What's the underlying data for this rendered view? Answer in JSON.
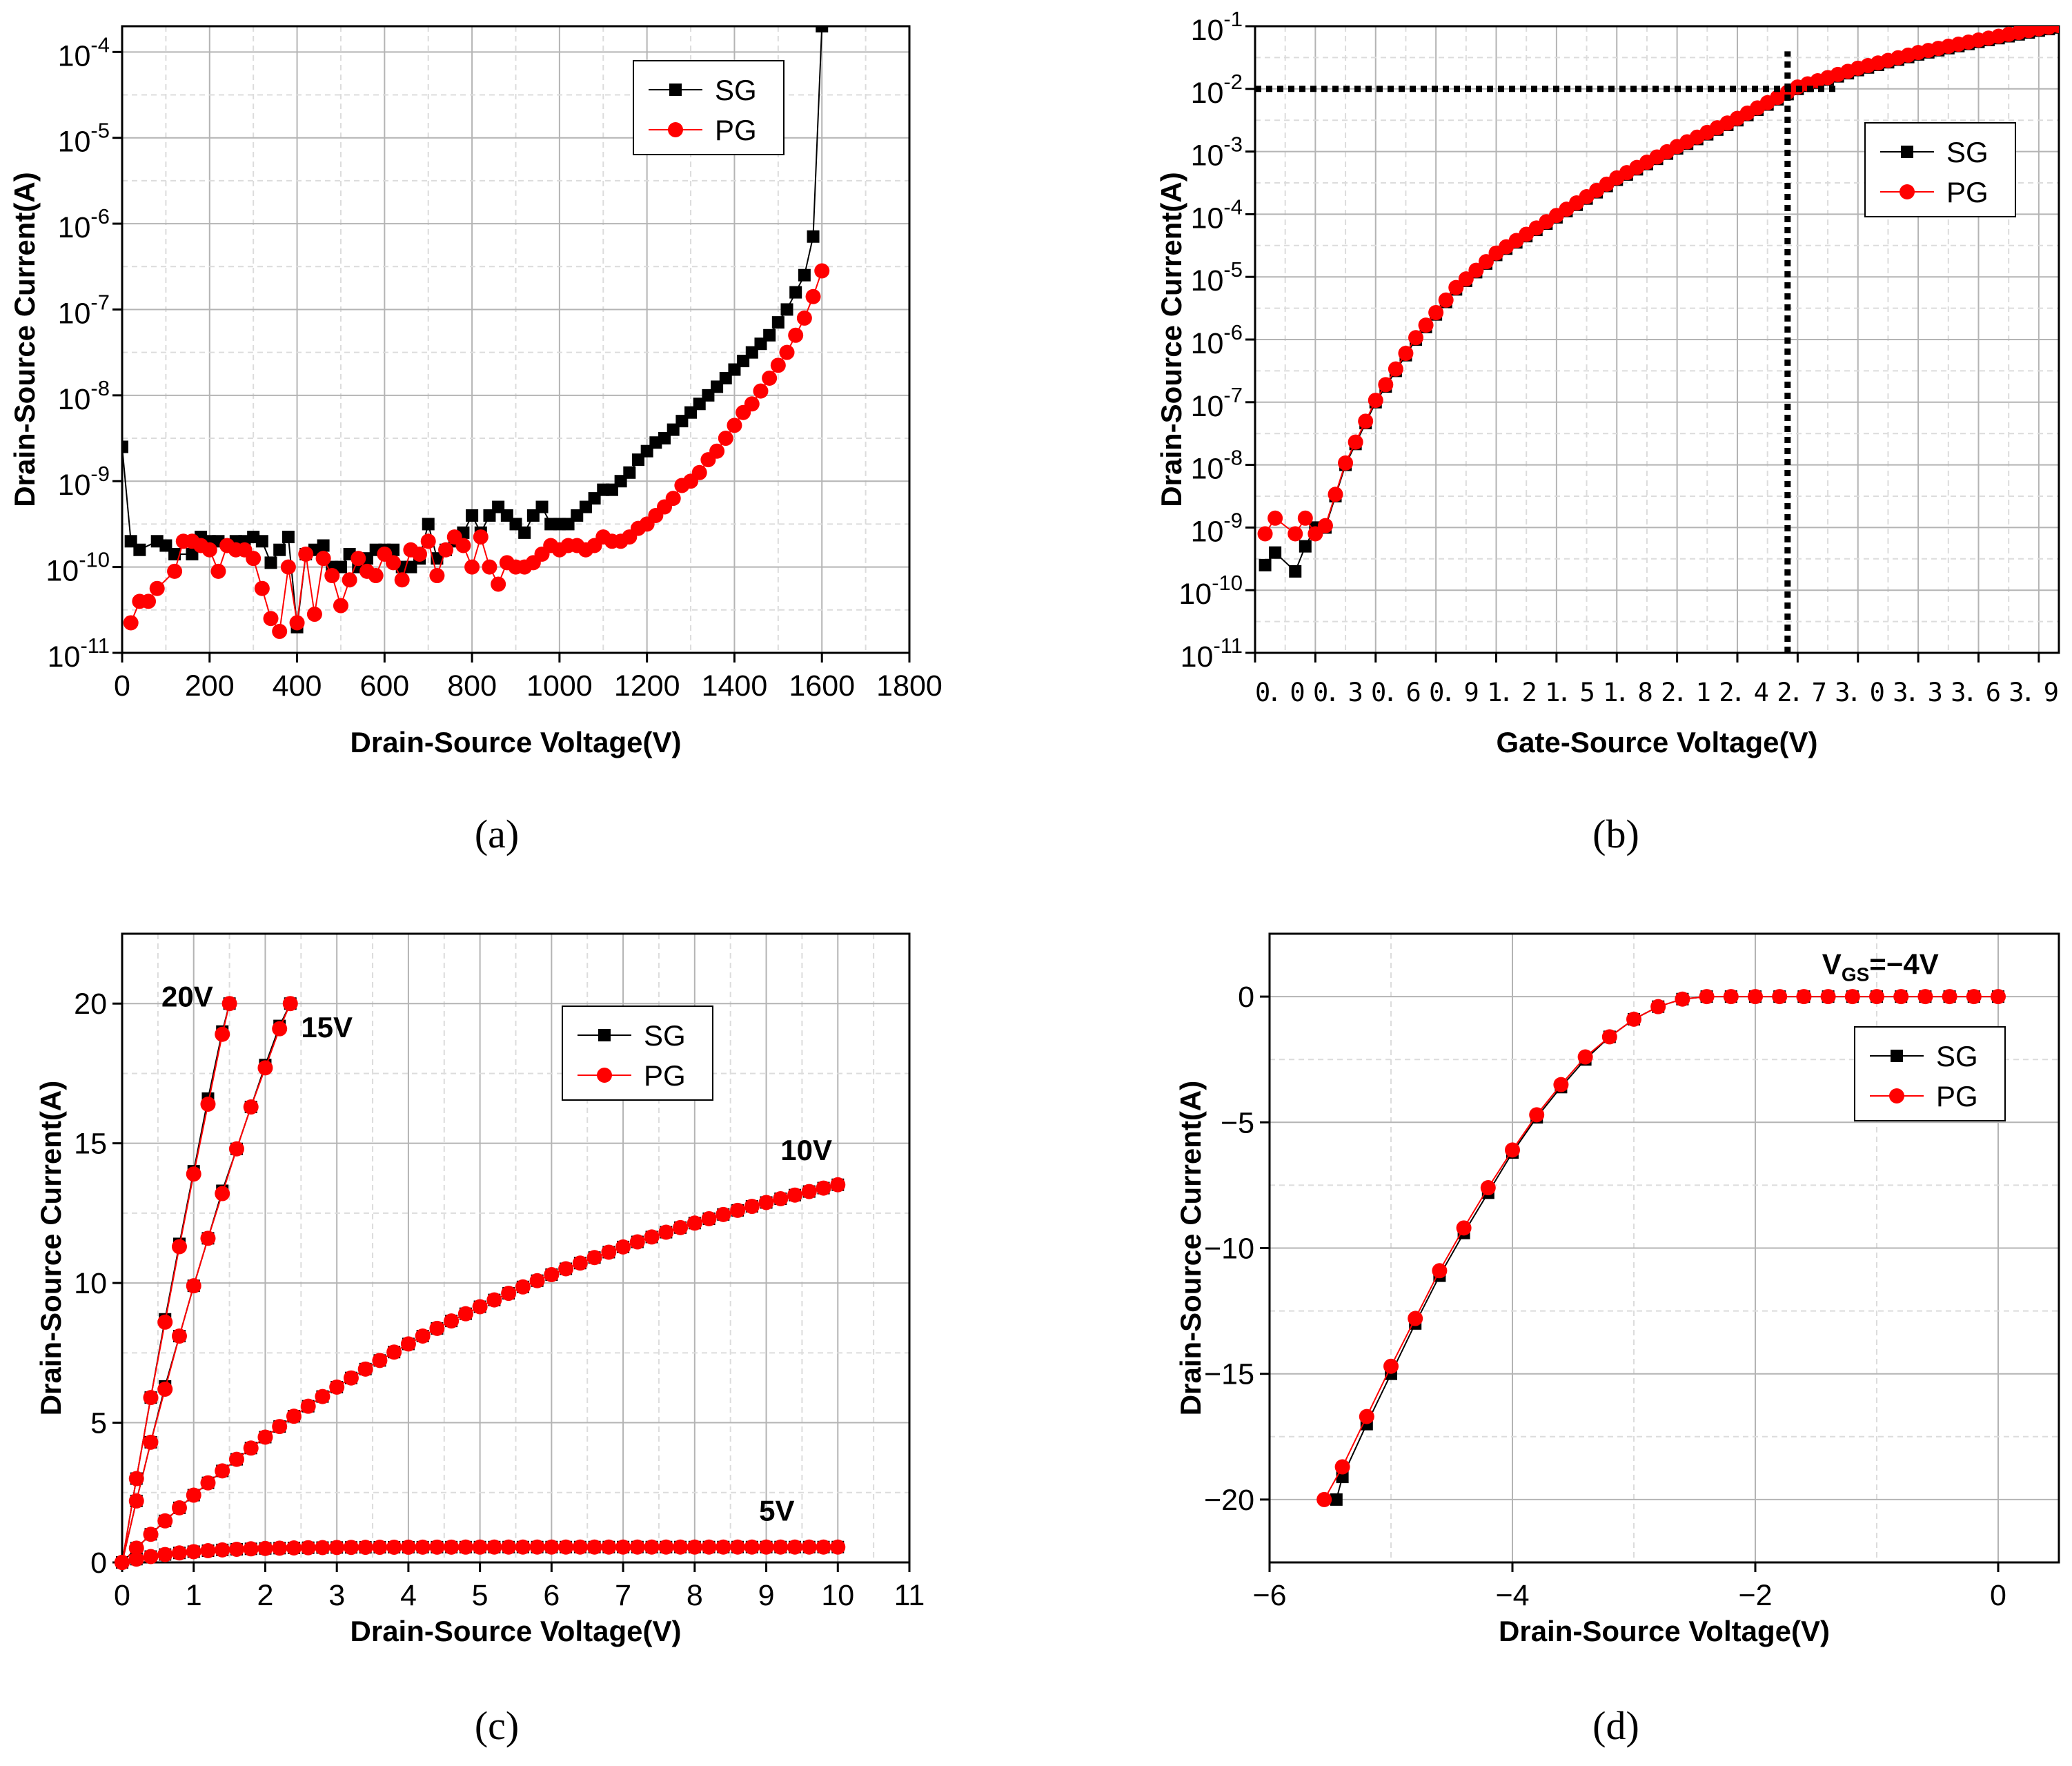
{
  "colors": {
    "sg": "#000000",
    "pg": "#ff0000",
    "frame": "#000000",
    "grid_major": "#b4b4b4",
    "grid_minor": "#dcdcdc"
  },
  "chart_data": [
    {
      "id": "a",
      "type": "scatter",
      "caption": "(a)",
      "xlabel": "Drain-Source Voltage(V)",
      "ylabel": "Drain-Source Current(A)",
      "xscale": "linear",
      "yscale": "log",
      "xlim": [
        0,
        1800
      ],
      "ylim_exp": [
        -11,
        -3.7
      ],
      "xticks": [
        0,
        200,
        400,
        600,
        800,
        1000,
        1200,
        1400,
        1600,
        1800
      ],
      "xtick_labels": [
        "0",
        "200",
        "400",
        "600",
        "800",
        "1000",
        "1200",
        "1400",
        "1600",
        "1800"
      ],
      "yticks": [
        -11,
        -10,
        -9,
        -8,
        -7,
        -6,
        -5,
        -4
      ],
      "ytick_labels": [
        {
          "base": "10",
          "exp": "-11"
        },
        {
          "base": "10",
          "exp": "-10"
        },
        {
          "base": "10",
          "exp": "-9"
        },
        {
          "base": "10",
          "exp": "-8"
        },
        {
          "base": "10",
          "exp": "-7"
        },
        {
          "base": "10",
          "exp": "-6"
        },
        {
          "base": "10",
          "exp": "-5"
        },
        {
          "base": "10",
          "exp": "-4"
        }
      ],
      "grid": true,
      "legend": {
        "position": "top-right",
        "entries": [
          "SG",
          "PG"
        ]
      },
      "annotations": [],
      "series": [
        {
          "name": "SG",
          "x": [
            0,
            20,
            40,
            80,
            100,
            120,
            160,
            180,
            200,
            220,
            260,
            280,
            300,
            320,
            340,
            360,
            380,
            400,
            420,
            440,
            460,
            480,
            500,
            520,
            540,
            560,
            580,
            600,
            620,
            640,
            660,
            680,
            700,
            720,
            740,
            760,
            780,
            800,
            820,
            840,
            860,
            880,
            900,
            920,
            940,
            960,
            980,
            1000,
            1020,
            1040,
            1060,
            1080,
            1100,
            1120,
            1140,
            1160,
            1180,
            1200,
            1220,
            1240,
            1260,
            1280,
            1300,
            1320,
            1340,
            1360,
            1380,
            1400,
            1420,
            1440,
            1460,
            1480,
            1500,
            1520,
            1540,
            1560,
            1580,
            1600
          ],
          "y_exp": [
            -8.6,
            -9.7,
            -9.8,
            -9.7,
            -9.75,
            -9.85,
            -9.85,
            -9.65,
            -9.7,
            -9.7,
            -9.7,
            -9.7,
            -9.65,
            -9.7,
            -9.95,
            -9.8,
            -9.65,
            -10.7,
            -9.85,
            -9.8,
            -9.75,
            -10.0,
            -10.0,
            -9.85,
            -10.0,
            -9.9,
            -9.8,
            -9.8,
            -9.8,
            -10.0,
            -10.0,
            -9.9,
            -9.5,
            -9.9,
            -9.8,
            -9.7,
            -9.6,
            -9.4,
            -9.6,
            -9.4,
            -9.3,
            -9.4,
            -9.5,
            -9.6,
            -9.4,
            -9.3,
            -9.5,
            -9.5,
            -9.5,
            -9.4,
            -9.3,
            -9.2,
            -9.1,
            -9.1,
            -9.0,
            -8.9,
            -8.75,
            -8.65,
            -8.55,
            -8.5,
            -8.4,
            -8.3,
            -8.2,
            -8.1,
            -8.0,
            -7.9,
            -7.8,
            -7.7,
            -7.6,
            -7.5,
            -7.4,
            -7.3,
            -7.15,
            -7.0,
            -6.8,
            -6.6,
            -6.15,
            -3.7
          ]
        },
        {
          "name": "PG",
          "x": [
            20,
            40,
            60,
            80,
            120,
            140,
            160,
            180,
            200,
            220,
            240,
            260,
            280,
            300,
            320,
            340,
            360,
            380,
            400,
            420,
            440,
            460,
            480,
            500,
            520,
            540,
            560,
            580,
            600,
            620,
            640,
            660,
            680,
            700,
            720,
            740,
            760,
            780,
            800,
            820,
            840,
            860,
            880,
            900,
            920,
            940,
            960,
            980,
            1000,
            1020,
            1040,
            1060,
            1080,
            1100,
            1120,
            1140,
            1160,
            1180,
            1200,
            1220,
            1240,
            1260,
            1280,
            1300,
            1320,
            1340,
            1360,
            1380,
            1400,
            1420,
            1440,
            1460,
            1480,
            1500,
            1520,
            1540,
            1560,
            1580,
            1600
          ],
          "y_exp": [
            -10.65,
            -10.4,
            -10.4,
            -10.25,
            -10.05,
            -9.7,
            -9.7,
            -9.75,
            -9.8,
            -10.05,
            -9.75,
            -9.8,
            -9.8,
            -9.9,
            -10.25,
            -10.6,
            -10.75,
            -10.0,
            -10.65,
            -9.85,
            -10.55,
            -9.9,
            -10.1,
            -10.45,
            -10.15,
            -9.9,
            -10.05,
            -10.1,
            -9.85,
            -9.95,
            -10.15,
            -9.8,
            -9.85,
            -9.7,
            -10.1,
            -9.8,
            -9.65,
            -9.75,
            -10.0,
            -9.65,
            -10.0,
            -10.2,
            -9.95,
            -10.0,
            -10.0,
            -9.95,
            -9.85,
            -9.75,
            -9.8,
            -9.75,
            -9.75,
            -9.8,
            -9.75,
            -9.65,
            -9.7,
            -9.7,
            -9.65,
            -9.55,
            -9.5,
            -9.4,
            -9.3,
            -9.2,
            -9.05,
            -9.0,
            -8.9,
            -8.75,
            -8.65,
            -8.5,
            -8.35,
            -8.2,
            -8.1,
            -7.95,
            -7.8,
            -7.65,
            -7.5,
            -7.3,
            -7.1,
            -6.85,
            -6.55
          ]
        }
      ]
    },
    {
      "id": "b",
      "type": "scatter",
      "caption": "(b)",
      "xlabel": "Gate-Source Voltage(V)",
      "ylabel": "Drain-Source Current(A)",
      "xscale": "linear",
      "yscale": "log",
      "xlim": [
        0,
        4.0
      ],
      "ylim_exp": [
        -11,
        -1
      ],
      "xticks": [
        0,
        0.3,
        0.6,
        0.9,
        1.2,
        1.5,
        1.8,
        2.1,
        2.4,
        2.7,
        3.0,
        3.3,
        3.6,
        3.9
      ],
      "xtick_labels": [
        "0.0",
        "0.3",
        "0.6",
        "0.9",
        "1.2",
        "1.5",
        "1.8",
        "2.1",
        "2.4",
        "2.7",
        "3.0",
        "3.3",
        "3.6",
        "3.9"
      ],
      "xtick_labels_inline": "0. 0 0. 3 0. 6 0. 9 1. 2 1. 5 1. 8 2. 1 2. 4 2. 7 3. 0 3. 3 3. 6 3. 9",
      "yticks": [
        -11,
        -10,
        -9,
        -8,
        -7,
        -6,
        -5,
        -4,
        -3,
        -2,
        -1
      ],
      "ytick_labels": [
        {
          "base": "10",
          "exp": "-11"
        },
        {
          "base": "10",
          "exp": "-10"
        },
        {
          "base": "10",
          "exp": "-9"
        },
        {
          "base": "10",
          "exp": "-8"
        },
        {
          "base": "10",
          "exp": "-7"
        },
        {
          "base": "10",
          "exp": "-6"
        },
        {
          "base": "10",
          "exp": "-5"
        },
        {
          "base": "10",
          "exp": "-4"
        },
        {
          "base": "10",
          "exp": "-3"
        },
        {
          "base": "10",
          "exp": "-2"
        },
        {
          "base": "10",
          "exp": "-1"
        }
      ],
      "grid": true,
      "legend": {
        "position": "upper-right",
        "entries": [
          "SG",
          "PG"
        ]
      },
      "annotations": [],
      "reference_lines": [
        {
          "type": "horizontal",
          "y_exp": -2,
          "x_from": 0,
          "x_to": 2.9
        },
        {
          "type": "vertical",
          "x": 2.65,
          "y_from_exp": -11,
          "y_to_exp": -1.4
        }
      ],
      "sg_low": {
        "x": [
          0.05,
          0.1,
          0.2,
          0.25,
          0.3,
          0.35
        ],
        "y_exp": [
          -9.6,
          -9.4,
          -9.7,
          -9.3,
          -9.0,
          -9.0
        ]
      },
      "pg_low": {
        "x": [
          0.05,
          0.1,
          0.2,
          0.25,
          0.3
        ],
        "y_exp": [
          -9.1,
          -8.85,
          -9.1,
          -8.85,
          -9.1
        ]
      },
      "series": [
        {
          "name": "SG",
          "x_start": 0.35,
          "x_end": 4.0,
          "x_step": 0.05
        },
        {
          "name": "PG",
          "x_start": 0.35,
          "x_end": 4.0,
          "x_step": 0.05
        }
      ]
    },
    {
      "id": "c",
      "type": "line",
      "caption": "(c)",
      "xlabel": "Drain-Source Voltage(V)",
      "ylabel": "Drain-Source Current(A)",
      "xscale": "linear",
      "yscale": "linear",
      "xlim": [
        0,
        11
      ],
      "ylim": [
        0,
        22.5
      ],
      "xticks": [
        0,
        1,
        2,
        3,
        4,
        5,
        6,
        7,
        8,
        9,
        10,
        11
      ],
      "xtick_labels": [
        "0",
        "1",
        "2",
        "3",
        "4",
        "5",
        "6",
        "7",
        "8",
        "9",
        "10",
        "11"
      ],
      "yticks": [
        0,
        5,
        10,
        15,
        20
      ],
      "ytick_labels": [
        "0",
        "5",
        "10",
        "15",
        "20"
      ],
      "grid": true,
      "legend": {
        "position": "top-right",
        "entries": [
          "SG",
          "PG"
        ]
      },
      "annotations": [
        {
          "text": "20V",
          "x": 0.55,
          "y": 19.9
        },
        {
          "text": "15V",
          "x": 2.5,
          "y": 18.8
        },
        {
          "text": "10V",
          "x": 9.2,
          "y": 14.4
        },
        {
          "text": "5V",
          "x": 8.9,
          "y": 1.5
        }
      ],
      "series": [
        {
          "name": "SG 20V",
          "x": [
            0,
            0.2,
            0.4,
            0.6,
            0.8,
            1.0,
            1.2,
            1.4,
            1.5
          ],
          "y": [
            0,
            3.0,
            5.9,
            8.7,
            11.4,
            14.0,
            16.6,
            19.0,
            20.0
          ]
        },
        {
          "name": "PG 20V",
          "x": [
            0,
            0.2,
            0.4,
            0.6,
            0.8,
            1.0,
            1.2,
            1.4,
            1.5
          ],
          "y": [
            0,
            3.0,
            5.9,
            8.6,
            11.3,
            13.9,
            16.4,
            18.9,
            20.0
          ]
        },
        {
          "name": "SG 15V",
          "x": [
            0,
            0.2,
            0.4,
            0.6,
            0.8,
            1.0,
            1.2,
            1.4,
            1.6,
            1.8,
            2.0,
            2.2,
            2.35
          ],
          "y": [
            0,
            2.2,
            4.3,
            6.3,
            8.1,
            9.9,
            11.6,
            13.3,
            14.8,
            16.3,
            17.8,
            19.2,
            20.0
          ]
        },
        {
          "name": "PG 15V",
          "x": [
            0,
            0.2,
            0.4,
            0.6,
            0.8,
            1.0,
            1.2,
            1.4,
            1.6,
            1.8,
            2.0,
            2.2,
            2.35
          ],
          "y": [
            0,
            2.2,
            4.3,
            6.2,
            8.1,
            9.9,
            11.6,
            13.2,
            14.8,
            16.3,
            17.7,
            19.1,
            20.0
          ]
        },
        {
          "name": "SG 10V",
          "x_start": 0,
          "x_end": 10,
          "x_step": 0.2,
          "model": "sat",
          "a": 17.5,
          "b": 0.148
        },
        {
          "name": "PG 10V",
          "x_start": 0,
          "x_end": 10,
          "x_step": 0.2,
          "model": "sat",
          "a": 17.5,
          "b": 0.148
        },
        {
          "name": "SG 5V",
          "x_start": 0,
          "x_end": 10,
          "x_step": 0.2,
          "model": "sat",
          "a": 0.55,
          "b": 1.2
        },
        {
          "name": "PG 5V",
          "x_start": 0,
          "x_end": 10,
          "x_step": 0.2,
          "model": "sat",
          "a": 0.55,
          "b": 1.2
        }
      ]
    },
    {
      "id": "d",
      "type": "line",
      "caption": "(d)",
      "xlabel": "Drain-Source Voltage(V)",
      "ylabel": "Drain-Source Current(A)",
      "xscale": "linear",
      "yscale": "linear",
      "xlim": [
        -6,
        0.5
      ],
      "ylim": [
        -22.5,
        2.5
      ],
      "xticks": [
        -6,
        -4,
        -2,
        0
      ],
      "xtick_labels": [
        "−6",
        "−4",
        "−2",
        "0"
      ],
      "yticks": [
        -20,
        -15,
        -10,
        -5,
        0
      ],
      "ytick_labels": [
        "−20",
        "−15",
        "−10",
        "−5",
        "0"
      ],
      "grid": true,
      "legend": {
        "position": "upper-right",
        "entries": [
          "SG",
          "PG"
        ]
      },
      "annotations": [
        {
          "main": "V",
          "sub": "GS",
          "rest": "=−4V",
          "x": -1.45,
          "y": 0.9
        }
      ],
      "series": [
        {
          "name": "SG",
          "x": [
            -5.45,
            -5.4,
            -5.2,
            -5.0,
            -4.8,
            -4.6,
            -4.4,
            -4.2,
            -4.0,
            -3.8,
            -3.6,
            -3.4,
            -3.2,
            -3.0,
            -2.8,
            -2.6,
            -2.4,
            -2.2,
            -2.0,
            -1.8,
            -1.6,
            -1.4,
            -1.2,
            -1.0,
            -0.8,
            -0.6,
            -0.4,
            -0.2,
            0
          ],
          "y": [
            -20,
            -19.1,
            -17.0,
            -15.0,
            -13.0,
            -11.1,
            -9.4,
            -7.8,
            -6.2,
            -4.8,
            -3.6,
            -2.5,
            -1.6,
            -0.9,
            -0.4,
            -0.1,
            0,
            0,
            0,
            0,
            0,
            0,
            0,
            0,
            0,
            0,
            0,
            0,
            0
          ]
        },
        {
          "name": "PG",
          "x": [
            -5.55,
            -5.4,
            -5.2,
            -5.0,
            -4.8,
            -4.6,
            -4.4,
            -4.2,
            -4.0,
            -3.8,
            -3.6,
            -3.4,
            -3.2,
            -3.0,
            -2.8,
            -2.6,
            -2.4,
            -2.2,
            -2.0,
            -1.8,
            -1.6,
            -1.4,
            -1.2,
            -1.0,
            -0.8,
            -0.6,
            -0.4,
            -0.2,
            0
          ],
          "y": [
            -20,
            -18.7,
            -16.7,
            -14.7,
            -12.8,
            -10.9,
            -9.2,
            -7.6,
            -6.1,
            -4.7,
            -3.5,
            -2.4,
            -1.6,
            -0.9,
            -0.4,
            -0.1,
            0,
            0,
            0,
            0,
            0,
            0,
            0,
            0,
            0,
            0,
            0,
            0,
            0
          ]
        }
      ]
    }
  ]
}
